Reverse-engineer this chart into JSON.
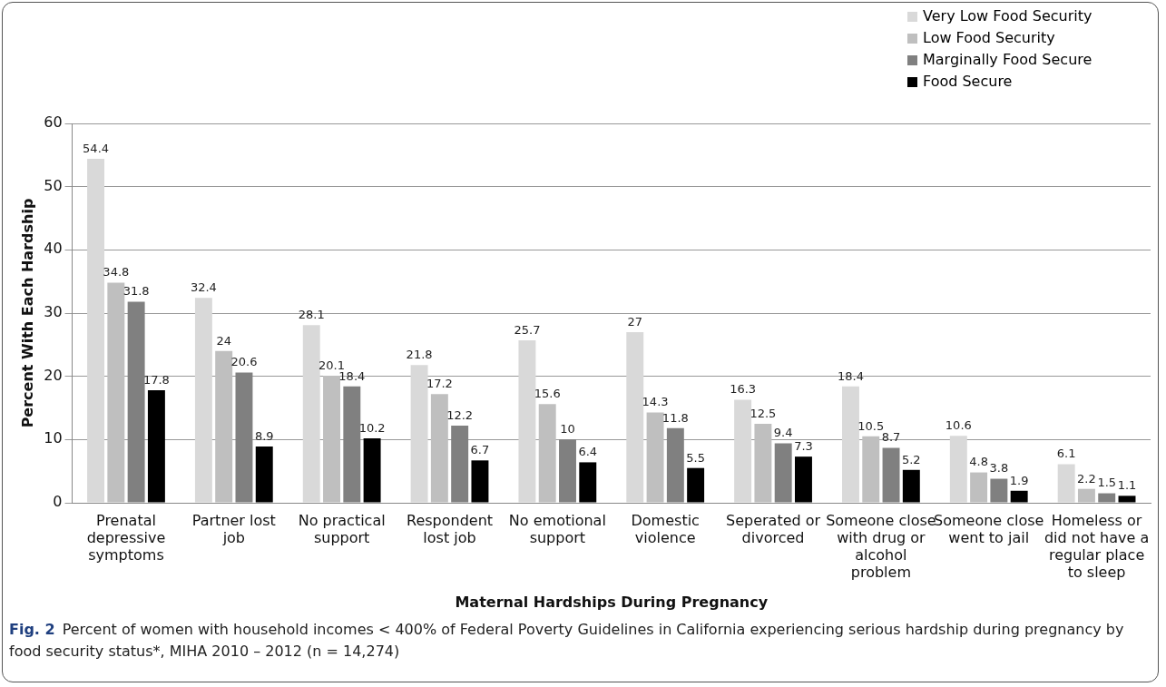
{
  "chart_data": {
    "type": "bar",
    "xlabel": "Maternal Hardships During Pregnancy",
    "ylabel": "Percent With Each Hardship",
    "categories": [
      "Prenatal depressive symptoms",
      "Partner lost job",
      "No practical support",
      "Respondent lost job",
      "No emotional support",
      "Domestic violence",
      "Seperated or divorced",
      "Someone close with drug or alcohol problem",
      "Someone close went to jail",
      "Homeless or did not have a regular place to sleep"
    ],
    "series": [
      {
        "name": "Very Low Food Security",
        "color": "#d9d9d9",
        "values": [
          54.4,
          32.4,
          28.1,
          21.8,
          25.7,
          27,
          16.3,
          18.4,
          10.6,
          6.1
        ]
      },
      {
        "name": "Low Food Security",
        "color": "#bfbfbf",
        "values": [
          34.8,
          24,
          20.1,
          17.2,
          15.6,
          14.3,
          12.5,
          10.5,
          4.8,
          2.2
        ]
      },
      {
        "name": "Marginally Food Secure",
        "color": "#808080",
        "values": [
          31.8,
          20.6,
          18.4,
          12.2,
          10,
          11.8,
          9.4,
          8.7,
          3.8,
          1.5
        ]
      },
      {
        "name": "Food Secure",
        "color": "#000000",
        "values": [
          17.8,
          8.9,
          10.2,
          6.7,
          6.4,
          5.5,
          7.3,
          5.2,
          1.9,
          1.1
        ]
      }
    ],
    "ylim": [
      0,
      60
    ],
    "yticks": [
      0,
      10,
      20,
      30,
      40,
      50,
      60
    ],
    "grid": "y",
    "legend": "top right",
    "data_labels": true,
    "annotations": [
      "Fig. 2",
      "Percent of women with household incomes < 400% of Federal Poverty Guidelines in California experiencing serious hardship during pregnancy by food security status*, MIHA 2010 – 2012 (n = 14,274)"
    ]
  }
}
